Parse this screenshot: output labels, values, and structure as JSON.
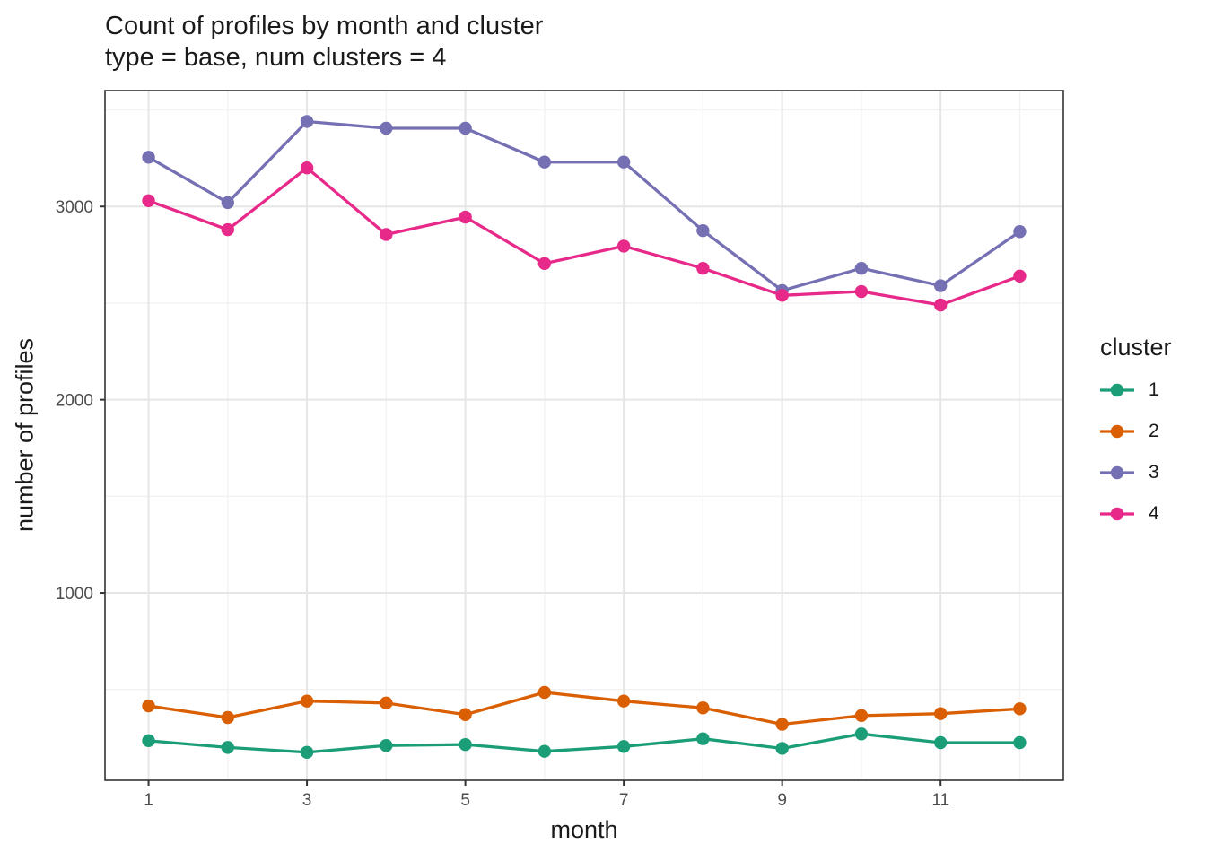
{
  "style": {
    "background": "#FFFFFF",
    "panel_border": "#333333",
    "grid_major": "#E6E6E6",
    "grid_minor": "#F2F2F2",
    "tick_color": "#333333",
    "tick_label_color": "#4D4D4D",
    "text_color": "#1A1A1A"
  },
  "chart_data": {
    "type": "line",
    "title": "Count of profiles by month and cluster",
    "subtitle": "type = base, num clusters = 4",
    "xlabel": "month",
    "ylabel": "number of profiles",
    "legend_title": "cluster",
    "legend_position": "right",
    "grid": true,
    "x": [
      1,
      2,
      3,
      4,
      5,
      6,
      7,
      8,
      9,
      10,
      11,
      12
    ],
    "x_ticks": [
      1,
      3,
      5,
      7,
      9,
      11
    ],
    "x_minor": [
      2,
      4,
      6,
      8,
      10,
      12
    ],
    "y_ticks": [
      1000,
      2000,
      3000
    ],
    "y_minor": [
      500,
      1500,
      2500,
      3500
    ],
    "xlim": [
      0.45,
      12.55
    ],
    "ylim": [
      30,
      3600
    ],
    "series": [
      {
        "name": "1",
        "color": "#1B9E77",
        "values": [
          235,
          200,
          175,
          210,
          215,
          180,
          205,
          245,
          195,
          270,
          225,
          225
        ]
      },
      {
        "name": "2",
        "color": "#D95F02",
        "values": [
          415,
          355,
          440,
          430,
          370,
          485,
          440,
          405,
          320,
          365,
          375,
          400
        ]
      },
      {
        "name": "3",
        "color": "#7570B3",
        "values": [
          3255,
          3020,
          3440,
          3405,
          3405,
          3230,
          3230,
          2875,
          2565,
          2680,
          2590,
          2870
        ]
      },
      {
        "name": "4",
        "color": "#E7298A",
        "values": [
          3030,
          2880,
          3200,
          2855,
          2945,
          2705,
          2795,
          2680,
          2540,
          2560,
          2490,
          2640
        ]
      }
    ]
  }
}
